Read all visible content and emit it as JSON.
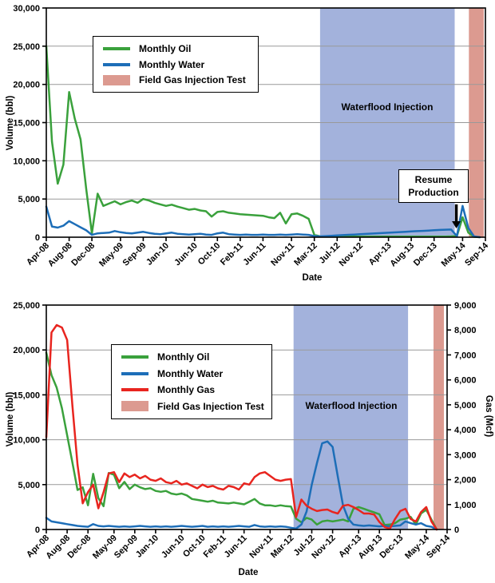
{
  "chart_data": [
    {
      "type": "line",
      "title": "",
      "xlabel": "Date",
      "ylabel": "Volume (bbl)",
      "x_range": [
        "Apr-08",
        "Sep-14"
      ],
      "months_total": 77,
      "ylim": [
        0,
        30000
      ],
      "grid": true,
      "legend_position": "top-left",
      "y_ticks": [
        "0",
        "5,000",
        "10,000",
        "15,000",
        "20,000",
        "25,000",
        "30,000"
      ],
      "x_ticks": [
        {
          "m": 0,
          "label": "Apr-08"
        },
        {
          "m": 4,
          "label": "Aug-08"
        },
        {
          "m": 8,
          "label": "Dec-08"
        },
        {
          "m": 13,
          "label": "May-09"
        },
        {
          "m": 17,
          "label": "Sep-09"
        },
        {
          "m": 21,
          "label": "Jan-10"
        },
        {
          "m": 26,
          "label": "Jun-10"
        },
        {
          "m": 30,
          "label": "Oct-10"
        },
        {
          "m": 34,
          "label": "Feb-11"
        },
        {
          "m": 38,
          "label": "Jun-11"
        },
        {
          "m": 43,
          "label": "Nov-11"
        },
        {
          "m": 47,
          "label": "Mar-12"
        },
        {
          "m": 51,
          "label": "Jul-12"
        },
        {
          "m": 55,
          "label": "Nov-12"
        },
        {
          "m": 60,
          "label": "Apr-13"
        },
        {
          "m": 64,
          "label": "Aug-13"
        },
        {
          "m": 68,
          "label": "Dec-13"
        },
        {
          "m": 73,
          "label": "May-14"
        },
        {
          "m": 77,
          "label": "Sep-14"
        }
      ],
      "legend": {
        "items": [
          {
            "label": "Monthly Oil",
            "color": "#3AA13C",
            "swatch": "line"
          },
          {
            "label": "Monthly Water",
            "color": "#1D6EB8",
            "swatch": "line"
          },
          {
            "label": "Field Gas Injection Test",
            "color": "#DC9A90",
            "swatch": "box"
          }
        ]
      },
      "bands": [
        {
          "key": "waterflood-injection",
          "label": "Waterflood Injection",
          "start_month": 48,
          "end_month": 71.6,
          "color": "#A3B2DC"
        },
        {
          "key": "field-gas-injection-test",
          "label": "Field Gas Injection Test",
          "start_month": 74.1,
          "end_month": 76.7,
          "color": "#DC9A90"
        }
      ],
      "annotation": {
        "label": "Resume Production",
        "arrow_month": 71.9,
        "arrow_from_value": 4300,
        "arrow_tip_value": 1150
      },
      "series": [
        {
          "name": "Monthly Oil",
          "color": "#3AA13C",
          "axis": "left",
          "values": [
            25000,
            12500,
            7000,
            9500,
            19000,
            15500,
            12800,
            6300,
            500,
            5700,
            4100,
            4400,
            4700,
            4300,
            4600,
            4800,
            4500,
            5000,
            4800,
            4500,
            4300,
            4100,
            4250,
            4000,
            3800,
            3600,
            3700,
            3500,
            3400,
            2700,
            3300,
            3400,
            3200,
            3100,
            3000,
            2950,
            2900,
            2850,
            2800,
            2600,
            2500,
            3200,
            1800,
            3000,
            3100,
            2800,
            2400,
            300,
            100,
            80,
            80,
            80,
            80,
            80,
            80,
            80,
            80,
            80,
            80,
            80,
            80,
            80,
            80,
            80,
            80,
            80,
            80,
            80,
            80,
            80,
            80,
            100,
            150,
            2600,
            600,
            50,
            0,
            null
          ]
        },
        {
          "name": "Monthly Water",
          "color": "#1D6EB8",
          "axis": "left",
          "values": [
            4000,
            1400,
            1250,
            1500,
            2100,
            1700,
            1300,
            900,
            300,
            500,
            550,
            600,
            800,
            650,
            550,
            500,
            600,
            700,
            550,
            450,
            400,
            500,
            600,
            450,
            400,
            350,
            400,
            450,
            350,
            300,
            500,
            600,
            400,
            350,
            300,
            350,
            300,
            300,
            350,
            300,
            300,
            350,
            300,
            350,
            400,
            350,
            300,
            150,
            100,
            150,
            190,
            230,
            270,
            310,
            350,
            390,
            430,
            470,
            510,
            550,
            590,
            630,
            670,
            710,
            750,
            790,
            830,
            870,
            910,
            950,
            980,
            1000,
            150,
            4100,
            1200,
            100,
            0,
            null
          ]
        }
      ]
    },
    {
      "type": "line",
      "title": "",
      "xlabel": "Date",
      "ylabel": "Volume (bbl)",
      "y2label": "Gas (Mcf)",
      "x_range": [
        "Apr-08",
        "Sep-14"
      ],
      "months_total": 77,
      "ylim": [
        0,
        25000
      ],
      "y2lim": [
        0,
        9000
      ],
      "grid": true,
      "legend_position": "upper-middle-left",
      "y_ticks": [
        "0",
        "5,000",
        "10,000",
        "15,000",
        "20,000",
        "25,000"
      ],
      "y2_ticks": [
        "0",
        "1,000",
        "2,000",
        "3,000",
        "4,000",
        "5,000",
        "6,000",
        "7,000",
        "8,000",
        "9,000"
      ],
      "x_ticks": [
        {
          "m": 0,
          "label": "Apr-08"
        },
        {
          "m": 4,
          "label": "Aug-08"
        },
        {
          "m": 8,
          "label": "Dec-08"
        },
        {
          "m": 13,
          "label": "May-09"
        },
        {
          "m": 17,
          "label": "Sep-09"
        },
        {
          "m": 21,
          "label": "Jan-10"
        },
        {
          "m": 26,
          "label": "Jun-10"
        },
        {
          "m": 30,
          "label": "Oct-10"
        },
        {
          "m": 34,
          "label": "Feb-11"
        },
        {
          "m": 38,
          "label": "Jun-11"
        },
        {
          "m": 43,
          "label": "Nov-11"
        },
        {
          "m": 47,
          "label": "Mar-12"
        },
        {
          "m": 51,
          "label": "Jul-12"
        },
        {
          "m": 55,
          "label": "Nov-12"
        },
        {
          "m": 60,
          "label": "Apr-13"
        },
        {
          "m": 64,
          "label": "Aug-13"
        },
        {
          "m": 68,
          "label": "Dec-13"
        },
        {
          "m": 73,
          "label": "May-14"
        },
        {
          "m": 77,
          "label": "Sep-14"
        }
      ],
      "legend": {
        "items": [
          {
            "label": "Monthly Oil",
            "color": "#3AA13C",
            "swatch": "line"
          },
          {
            "label": "Monthly Water",
            "color": "#1D6EB8",
            "swatch": "line"
          },
          {
            "label": "Monthly Gas",
            "color": "#E8251F",
            "swatch": "line"
          },
          {
            "label": "Field Gas Injection Test",
            "color": "#DC9A90",
            "swatch": "box"
          }
        ]
      },
      "bands": [
        {
          "key": "waterflood-injection",
          "label": "Waterflood Injection",
          "start_month": 47.5,
          "end_month": 69.5,
          "color": "#A3B2DC"
        },
        {
          "key": "field-gas-injection-test",
          "label": "Field Gas Injection Test",
          "start_month": 74.4,
          "end_month": 76.4,
          "color": "#DC9A90"
        }
      ],
      "series": [
        {
          "name": "Monthly Oil",
          "color": "#3AA13C",
          "axis": "left",
          "values": [
            19700,
            17200,
            15800,
            13500,
            10500,
            7500,
            4400,
            4700,
            2700,
            6200,
            3500,
            2600,
            6300,
            6100,
            4600,
            5300,
            4500,
            5000,
            4700,
            4500,
            4600,
            4300,
            4200,
            4300,
            4000,
            3900,
            4000,
            3800,
            3400,
            3300,
            3200,
            3100,
            3200,
            3000,
            2950,
            2900,
            3000,
            2900,
            2800,
            3100,
            3400,
            2900,
            2700,
            2700,
            2600,
            2700,
            2600,
            2550,
            1200,
            800,
            1300,
            1100,
            550,
            900,
            1000,
            900,
            1000,
            1100,
            900,
            2300,
            2500,
            2300,
            2100,
            1900,
            1700,
            500,
            550,
            700,
            1100,
            1200,
            1400,
            550,
            1800,
            2200,
            1100,
            0,
            null,
            null
          ]
        },
        {
          "name": "Monthly Water",
          "color": "#1D6EB8",
          "axis": "left",
          "values": [
            1300,
            900,
            800,
            700,
            600,
            500,
            400,
            350,
            300,
            600,
            400,
            350,
            400,
            350,
            300,
            350,
            300,
            350,
            400,
            350,
            300,
            350,
            300,
            350,
            300,
            350,
            400,
            350,
            300,
            350,
            400,
            300,
            350,
            300,
            350,
            300,
            350,
            400,
            350,
            300,
            500,
            350,
            300,
            350,
            300,
            350,
            300,
            200,
            100,
            550,
            2000,
            5000,
            7400,
            9600,
            9800,
            9200,
            5900,
            2700,
            1200,
            550,
            450,
            400,
            450,
            400,
            350,
            400,
            350,
            400,
            450,
            900,
            700,
            550,
            700,
            400,
            300,
            0,
            null,
            null
          ]
        },
        {
          "name": "Monthly Gas",
          "color": "#E8251F",
          "axis": "right",
          "values": [
            3700,
            7900,
            8200,
            8100,
            7600,
            5000,
            2600,
            1050,
            1500,
            1800,
            850,
            1500,
            2250,
            2300,
            1900,
            2250,
            2100,
            2200,
            2050,
            2150,
            2000,
            1950,
            2050,
            1900,
            1850,
            1950,
            1800,
            1850,
            1750,
            1650,
            1800,
            1700,
            1750,
            1650,
            1600,
            1750,
            1700,
            1600,
            1850,
            1800,
            2100,
            2250,
            2300,
            2150,
            2000,
            1950,
            2000,
            2020,
            500,
            1200,
            950,
            830,
            740,
            780,
            800,
            700,
            640,
            950,
            990,
            900,
            780,
            640,
            640,
            600,
            300,
            100,
            30,
            420,
            740,
            830,
            420,
            320,
            700,
            900,
            320,
            0,
            null,
            null
          ]
        }
      ]
    }
  ]
}
